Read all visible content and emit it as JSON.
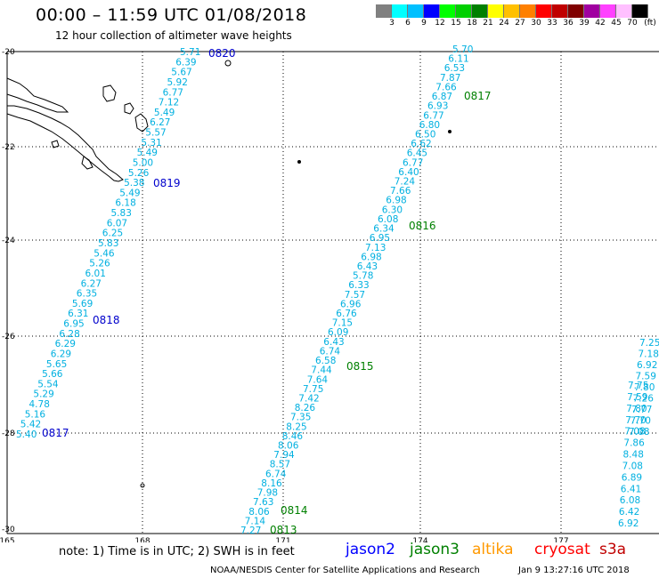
{
  "header": {
    "title": "00:00 – 11:59 UTC 01/08/2018",
    "subtitle": "12 hour collection of altimeter wave heights"
  },
  "scale": {
    "colors": [
      "#808080",
      "#00ffff",
      "#00c0ff",
      "#0000ff",
      "#00ff00",
      "#00d000",
      "#008000",
      "#ffff00",
      "#ffc000",
      "#ff8000",
      "#ff0000",
      "#c00000",
      "#800000",
      "#a000a0",
      "#ff40ff",
      "#ffc0ff",
      "#000000"
    ],
    "labels": [
      "3",
      "6",
      "9",
      "12",
      "15",
      "18",
      "21",
      "24",
      "27",
      "30",
      "33",
      "36",
      "39",
      "42",
      "45",
      "70",
      "(ft)"
    ]
  },
  "axes": {
    "lon_labels": [
      "165",
      "168",
      "171",
      "174",
      "177"
    ],
    "lat_labels": [
      "-20",
      "-22",
      "-24",
      "-26",
      "-28",
      "-30"
    ]
  },
  "tracks": {
    "jason2_west": {
      "color": "#00b0e0",
      "values": [
        "5.71",
        "6.39",
        "5.67",
        "5.92",
        "6.77",
        "7.12",
        "5.49",
        "6.27",
        "5.57",
        "5.31",
        "5.49",
        "5.00",
        "5.26",
        "5.38",
        "5.49",
        "6.18",
        "5.83",
        "6.07",
        "6.25",
        "5.83",
        "5.46",
        "5.26",
        "6.01",
        "6.27",
        "6.35",
        "5.69",
        "6.31",
        "6.95",
        "6.28",
        "6.29",
        "6.29",
        "5.65",
        "5.66",
        "5.54",
        "5.29",
        "4.78",
        "5.16",
        "5.42",
        "5.40"
      ],
      "time_labels": [
        "0820",
        "0819",
        "0818",
        "0817"
      ]
    },
    "jason3_center": {
      "color": "#00b0e0",
      "values": [
        "5.70",
        "6.11",
        "6.53",
        "7.87",
        "7.66",
        "6.87",
        "6.93",
        "6.77",
        "6.80",
        "6.50",
        "6.62",
        "6.45",
        "6.77",
        "6.40",
        "7.24",
        "7.66",
        "6.98",
        "6.30",
        "6.08",
        "6.34",
        "6.95",
        "7.13",
        "6.98",
        "6.43",
        "5.78",
        "6.33",
        "7.57",
        "6.96",
        "6.76",
        "7.15",
        "6.09",
        "6.43",
        "6.74",
        "6.58",
        "7.44",
        "7.64",
        "7.75",
        "7.42",
        "8.26",
        "7.35",
        "8.25",
        "8.46",
        "8.06",
        "7.94",
        "8.57",
        "6.74",
        "8.16",
        "7.98",
        "7.63",
        "8.06",
        "7.14",
        "7.27"
      ],
      "time_labels": [
        "0817",
        "0816",
        "0815",
        "0814",
        "0813"
      ]
    },
    "jason3_east": {
      "color": "#00b0e0",
      "values": [
        "7.75",
        "7.59",
        "7.80",
        "7.70",
        "7.08",
        "7.86",
        "8.48",
        "7.08",
        "6.89",
        "6.41",
        "6.08",
        "6.42",
        "6.92"
      ],
      "partial_values": [
        "7.25",
        "7.18",
        "6.92",
        "7.59",
        "7.80",
        "7.26",
        "7.77",
        "7.70",
        "7.08"
      ]
    }
  },
  "note": "note: 1) Time is in UTC; 2) SWH is in feet",
  "legend": [
    {
      "label": "jason2",
      "color": "#0000ff"
    },
    {
      "label": "jason3",
      "color": "#008000"
    },
    {
      "label": "altika",
      "color": "#ff9900"
    },
    {
      "label": "cryosat",
      "color": "#ff0000"
    },
    {
      "label": "s3a",
      "color": "#c00000"
    }
  ],
  "footer": {
    "left": "NOAA/NESDIS Center for Satellite Applications and Research",
    "right": "Jan  9 13:27:16 UTC 2018"
  }
}
